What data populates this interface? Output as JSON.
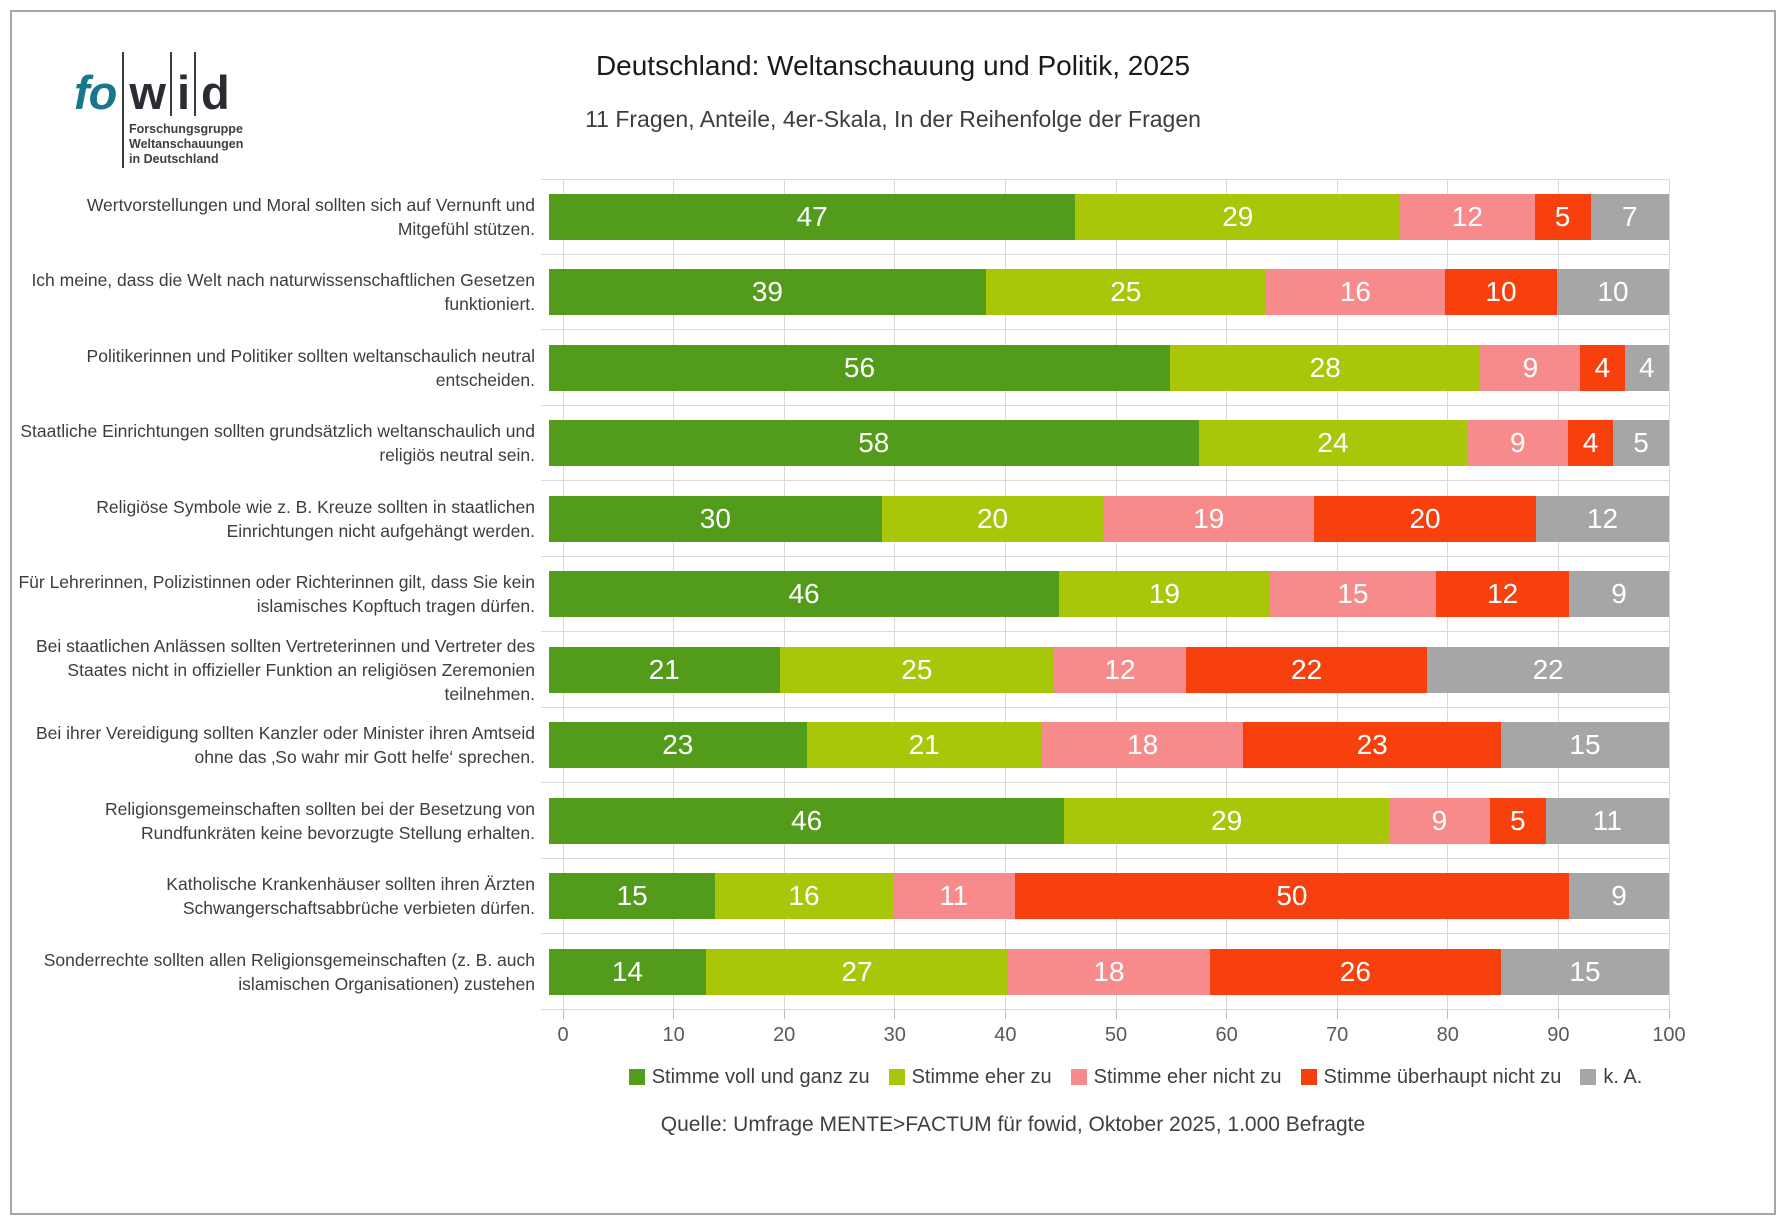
{
  "logo": {
    "part1": "fo",
    "part2": "w",
    "part3": "i",
    "part4": "d",
    "subtitle_lines": [
      "Forschungsgruppe",
      "Weltanschauungen",
      "in Deutschland"
    ]
  },
  "header": {
    "title": "Deutschland: Weltanschauung und Politik, 2025",
    "subtitle": "11 Fragen, Anteile, 4er-Skala, In der Reihenfolge der Fragen"
  },
  "source": "Quelle: Umfrage MENTE>FACTUM für fowid, Oktober 2025, 1.000 Befragte",
  "chart_data": {
    "type": "bar",
    "stacked": true,
    "orientation": "horizontal",
    "grid": true,
    "legend_position": "bottom",
    "xlim": [
      0,
      100
    ],
    "x_ticks": [
      0,
      10,
      20,
      30,
      40,
      50,
      60,
      70,
      80,
      90,
      100
    ],
    "categories": [
      "Wertvorstellungen und Moral sollten sich auf Vernunft und Mitgefühl stützen.",
      "Ich meine, dass die Welt nach naturwissenschaftlichen Gesetzen funktioniert.",
      "Politikerinnen und Politiker sollten weltanschaulich neutral entscheiden.",
      "Staatliche Einrichtungen sollten grundsätzlich weltanschaulich und religiös neutral sein.",
      "Religiöse Symbole wie z. B. Kreuze sollten in staatlichen Einrichtungen nicht aufgehängt werden.",
      "Für Lehrerinnen, Polizistinnen oder Richterinnen gilt, dass Sie kein islamisches Kopftuch tragen dürfen.",
      "Bei staatlichen Anlässen sollten Vertreterinnen und Vertreter des Staates nicht in offizieller Funktion an religiösen Zeremonien teilnehmen.",
      "Bei ihrer Vereidigung sollten Kanzler oder Minister ihren Amtseid ohne das ‚So wahr mir Gott helfe‘ sprechen.",
      "Religionsgemeinschaften sollten bei der Besetzung von Rundfunkräten keine bevorzugte Stellung erhalten.",
      "Katholische Krankenhäuser sollten ihren Ärzten Schwangerschaftsabbrüche verbieten dürfen.",
      "Sonderrechte sollten allen Religionsgemeinschaften (z. B. auch islamischen Organisationen) zustehen"
    ],
    "series": [
      {
        "name": "Stimme voll und ganz zu",
        "color": "#539b1b",
        "values": [
          47,
          39,
          56,
          58,
          30,
          46,
          21,
          23,
          46,
          15,
          14
        ]
      },
      {
        "name": "Stimme eher zu",
        "color": "#aac609",
        "values": [
          29,
          25,
          28,
          24,
          20,
          19,
          25,
          21,
          29,
          16,
          27
        ]
      },
      {
        "name": "Stimme eher nicht zu",
        "color": "#f78b8c",
        "values": [
          12,
          16,
          9,
          9,
          19,
          15,
          12,
          18,
          9,
          11,
          18
        ]
      },
      {
        "name": "Stimme überhaupt nicht zu",
        "color": "#f8400e",
        "values": [
          5,
          10,
          4,
          4,
          20,
          12,
          22,
          23,
          5,
          50,
          26
        ]
      },
      {
        "name": "k. A.",
        "color": "#a6a6a6",
        "values": [
          7,
          10,
          4,
          5,
          12,
          9,
          22,
          15,
          11,
          9,
          15
        ]
      }
    ],
    "grid_color": "#d9d9d9",
    "tick_color": "#bfbfbf",
    "axis_text_color": "#595959"
  }
}
